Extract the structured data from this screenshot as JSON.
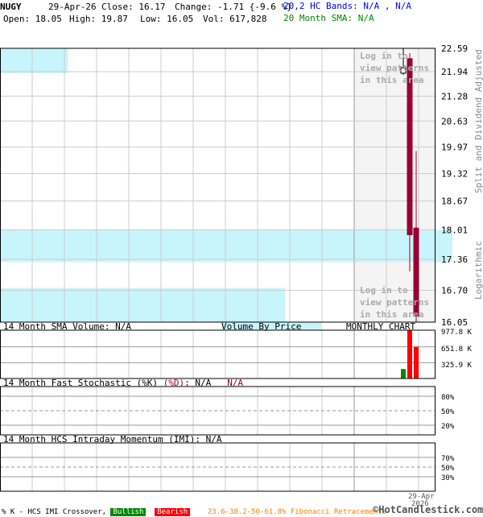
{
  "header": {
    "symbol": "NUGY",
    "date": "29-Apr-26",
    "close": "Close: 16.17",
    "change": "Change: -1.71 {-9.6 %}",
    "open": "Open: 18.05",
    "high": "High: 19.87",
    "low": "Low: 16.05",
    "vol": "Vol: 617,828",
    "bands": "20,2 HC Bands: N/A , N/A",
    "sma": "20 Month SMA: N/A"
  },
  "chart_data": {
    "type": "candlestick",
    "scale": "log",
    "ylim": [
      16.05,
      22.59
    ],
    "y_ticks": [
      "22.59",
      "21.94",
      "21.28",
      "20.63",
      "19.97",
      "19.32",
      "18.67",
      "18.01",
      "17.36",
      "16.70",
      "16.05"
    ],
    "candles": [
      {
        "open": 21.9,
        "high": 22.59,
        "low": 21.85,
        "close": 22.05,
        "color": "#ffffff"
      },
      {
        "open": 22.3,
        "high": 22.45,
        "low": 17.1,
        "close": 17.9,
        "color": "#990033"
      },
      {
        "open": 18.05,
        "high": 19.87,
        "low": 16.05,
        "close": 16.17,
        "color": "#990033"
      }
    ],
    "volume_by_price": [
      {
        "low": 21.9,
        "high": 22.59,
        "rel": 0.15
      },
      {
        "low": 17.3,
        "high": 18.01,
        "rel": 1.0
      },
      {
        "low": 16.05,
        "high": 16.75,
        "rel": 0.63
      }
    ],
    "volume": {
      "values": [
        195000,
        1000000,
        650000
      ],
      "colors": [
        "#008800",
        "#ff0000",
        "#ff0000"
      ],
      "y_ticks": [
        "977.8 K",
        "651.8 K",
        "325.9 K"
      ]
    },
    "stoch_ticks": [
      "80%",
      "50%",
      "20%"
    ],
    "imi_ticks": [
      "70%",
      "50%",
      "30%"
    ],
    "x_label": "29-Apr",
    "x_label_year": "2026"
  },
  "labels": {
    "split": "Split and Dividend Adjusted",
    "log": "Logarithmic",
    "login": [
      "Log in to",
      "view patterns",
      "in this area"
    ],
    "vol_sma": "14 Month SMA Volume: N/A",
    "vbp": "Volume By Price",
    "monthly": "MONTHLY CHART",
    "stoch": "14 Month Fast Stochastic (%K)",
    "stoch_d": "(%D)",
    "stoch_k_val": ": N/A",
    "stoch_d_val": "N/A",
    "imi": "14 Month HCS Intraday Momentum (IMI): N/A"
  },
  "footer": {
    "crossover": "% K - HCS IMI Crossover,",
    "bullish": "Bullish",
    "bearish": "Bearish",
    "fib": "23.6-38.2-50-61.8% Fibonacci Retracements",
    "brand": "©HotCandlestick.com"
  }
}
